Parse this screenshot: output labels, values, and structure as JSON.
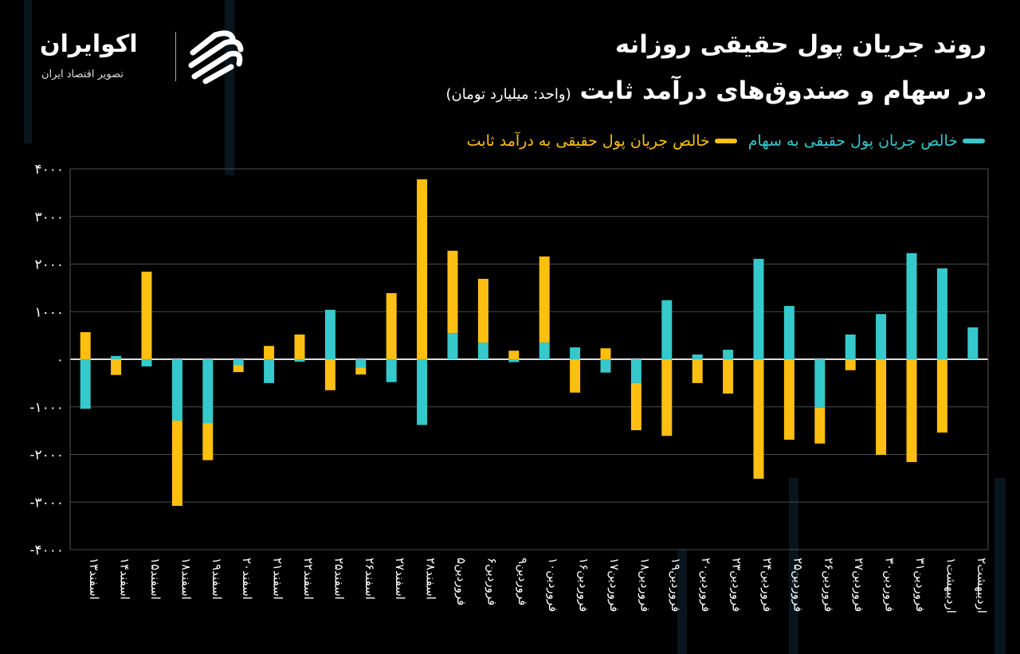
{
  "header": {
    "title_line1": "روند جریان پول حقیقی روزانه",
    "title_line2": "در سهام و صندوق‌های درآمد ثابت",
    "unit": "(واحد: میلیارد تومان)"
  },
  "logo": {
    "name": "اکوایران",
    "subtitle": "تصویر اقتصاد ایران"
  },
  "colors": {
    "stocks": "#35c9cc",
    "fixed_income": "#fcbf12",
    "background": "#000000",
    "grid": "#4a4a4a"
  },
  "chart_data": {
    "type": "bar",
    "stacked": true,
    "title": "روند جریان پول حقیقی روزانه در سهام و صندوق‌های درآمد ثابت",
    "ylabel": "",
    "xlabel": "",
    "ylim": [
      -4000,
      4000
    ],
    "yticks": [
      4000,
      3000,
      2000,
      1000,
      0,
      -1000,
      -2000,
      -3000,
      -4000
    ],
    "ytick_labels": [
      "۴۰۰۰",
      "۳۰۰۰",
      "۲۰۰۰",
      "۱۰۰۰",
      "۰",
      "-۱۰۰۰",
      "-۲۰۰۰",
      "-۳۰۰۰",
      "-۴۰۰۰"
    ],
    "grid": true,
    "legend_position": "top-right",
    "categories": [
      "اسفند۱۳",
      "اسفند۱۴",
      "اسفند۱۵",
      "اسفند۱۸",
      "اسفند۱۹",
      "اسفند۲۰",
      "اسفند۲۱",
      "اسفند۲۲",
      "اسفند۲۵",
      "اسفند۲۶",
      "اسفند۲۷",
      "اسفند۲۸",
      "فروردین۵",
      "فروردین۶",
      "فروردین۹",
      "فروردین۱۰",
      "فروردین۱۶",
      "فروردین۱۷",
      "فروردین۱۸",
      "فروردین۱۹",
      "فروردین۲۰",
      "فروردین۲۳",
      "فروردین۲۴",
      "فروردین۲۵",
      "فروردین۲۶",
      "فروردین۲۷",
      "فروردین۳۰",
      "فروردین۳۱",
      "اردیبهشت۱",
      "اردیبهشت۲"
    ],
    "series": [
      {
        "name": "خالص جریان پول حقیقی به سهام",
        "values": [
          -1040,
          70,
          -150,
          -1290,
          -1340,
          -120,
          -500,
          -50,
          1040,
          -170,
          -480,
          -1380,
          550,
          350,
          -60,
          350,
          250,
          -280,
          -500,
          1240,
          100,
          200,
          2110,
          1120,
          -1020,
          520,
          950,
          2230,
          1910,
          670
        ]
      },
      {
        "name": "خالص جریان پول حقیقی به درآمد ثابت",
        "values": [
          570,
          -330,
          1840,
          -1790,
          -780,
          -150,
          280,
          520,
          -650,
          -150,
          1390,
          3780,
          1730,
          1340,
          180,
          1810,
          -700,
          230,
          -990,
          -1610,
          -500,
          -720,
          -2510,
          -1690,
          -750,
          -230,
          -2010,
          -2160,
          -1540,
          0
        ]
      }
    ]
  }
}
